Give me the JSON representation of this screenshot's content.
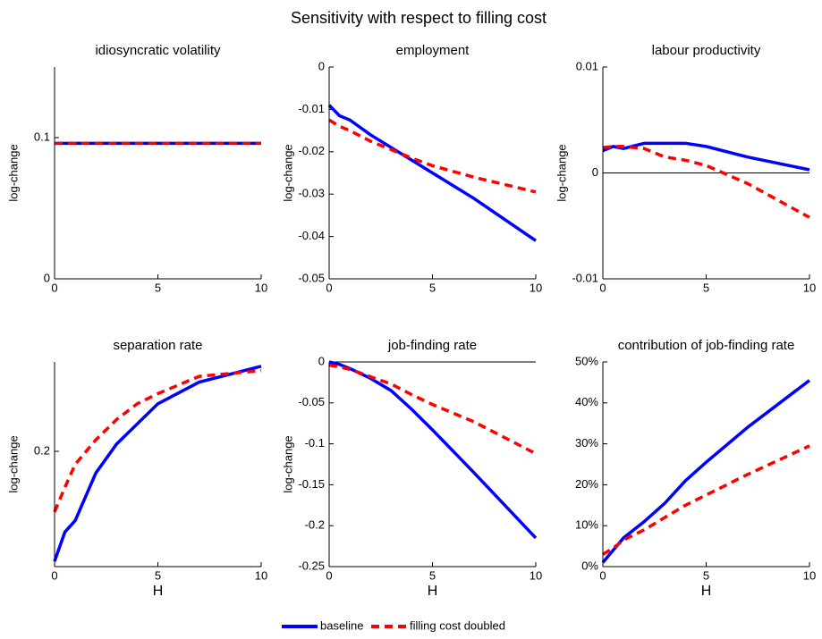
{
  "title": "Sensitivity with respect to filling cost",
  "legend": [
    {
      "name": "baseline",
      "color": "#0000ff"
    },
    {
      "name": "filling cost doubled",
      "color": "#ff0000",
      "dashed": true
    }
  ],
  "chart_data": [
    {
      "type": "line",
      "title": "idiosyncratic volatility",
      "ylabel": "log-change",
      "x": [
        0,
        0.5,
        1,
        2,
        3,
        4,
        5,
        7,
        10
      ],
      "xlim": [
        0,
        10
      ],
      "xticks": [
        0,
        5,
        10
      ],
      "ylim": [
        0,
        0.15
      ],
      "yticks": [
        0,
        0.1
      ],
      "series": [
        {
          "values": [
            0.096,
            0.096,
            0.096,
            0.096,
            0.096,
            0.096,
            0.096,
            0.096,
            0.096
          ]
        },
        {
          "values": [
            0.096,
            0.096,
            0.096,
            0.096,
            0.096,
            0.096,
            0.096,
            0.096,
            0.096
          ]
        }
      ]
    },
    {
      "type": "line",
      "title": "employment",
      "ylabel": "log-change",
      "x": [
        0,
        0.5,
        1,
        2,
        3,
        4,
        5,
        7,
        10
      ],
      "xlim": [
        0,
        10
      ],
      "xticks": [
        0,
        5,
        10
      ],
      "ylim": [
        -0.05,
        0
      ],
      "yticks": [
        -0.05,
        -0.04,
        -0.03,
        -0.02,
        -0.01,
        0
      ],
      "series": [
        {
          "values": [
            -0.009,
            -0.0115,
            -0.0125,
            -0.016,
            -0.019,
            -0.022,
            -0.025,
            -0.031,
            -0.041
          ]
        },
        {
          "values": [
            -0.0125,
            -0.014,
            -0.015,
            -0.0175,
            -0.0195,
            -0.0215,
            -0.0233,
            -0.026,
            -0.0295
          ]
        }
      ]
    },
    {
      "type": "line",
      "title": "labour productivity",
      "ylabel": "log-change",
      "zero_line": true,
      "x": [
        0,
        0.5,
        1,
        2,
        3,
        4,
        5,
        7,
        10
      ],
      "xlim": [
        0,
        10
      ],
      "xticks": [
        0,
        5,
        10
      ],
      "ylim": [
        -0.01,
        0.01
      ],
      "yticks": [
        -0.01,
        0,
        0.01
      ],
      "series": [
        {
          "values": [
            0.0021,
            0.0025,
            0.0023,
            0.0028,
            0.0028,
            0.0028,
            0.0025,
            0.0015,
            0.0003
          ]
        },
        {
          "values": [
            0.0024,
            0.0025,
            0.0025,
            0.0023,
            0.0015,
            0.0012,
            0.0007,
            -0.001,
            -0.0042
          ]
        }
      ]
    },
    {
      "type": "line",
      "title": "separation rate",
      "ylabel": "log-change",
      "xlabel": "H",
      "x": [
        0,
        0.5,
        1,
        2,
        3,
        4,
        5,
        7,
        10
      ],
      "xlim": [
        0,
        10
      ],
      "xticks": [
        0,
        5,
        10
      ],
      "ylim": [
        0.12,
        0.262
      ],
      "yticks": [
        0.2
      ],
      "series": [
        {
          "values": [
            0.1237,
            0.144,
            0.152,
            0.185,
            0.205,
            0.219,
            0.233,
            0.248,
            0.259
          ]
        },
        {
          "values": [
            0.158,
            0.175,
            0.191,
            0.208,
            0.222,
            0.233,
            0.24,
            0.252,
            0.256
          ]
        }
      ]
    },
    {
      "type": "line",
      "title": "job-finding rate",
      "ylabel": "log-change",
      "xlabel": "H",
      "zero_line": true,
      "x": [
        0,
        0.5,
        1,
        2,
        3,
        4,
        5,
        7,
        10
      ],
      "xlim": [
        0,
        10
      ],
      "xticks": [
        0,
        5,
        10
      ],
      "ylim": [
        -0.25,
        0
      ],
      "yticks": [
        -0.25,
        -0.2,
        -0.15,
        -0.1,
        -0.05,
        0
      ],
      "series": [
        {
          "values": [
            0,
            -0.003,
            -0.008,
            -0.02,
            -0.035,
            -0.058,
            -0.083,
            -0.135,
            -0.215
          ]
        },
        {
          "values": [
            -0.004,
            -0.006,
            -0.009,
            -0.018,
            -0.027,
            -0.04,
            -0.052,
            -0.073,
            -0.112
          ]
        }
      ]
    },
    {
      "type": "line",
      "title": "contribution of job-finding rate",
      "xlabel": "H",
      "x": [
        0,
        0.5,
        1,
        2,
        3,
        4,
        5,
        7,
        10
      ],
      "xlim": [
        0,
        10
      ],
      "xticks": [
        0,
        5,
        10
      ],
      "ylim": [
        0,
        50
      ],
      "yticks": [
        {
          "value": 0,
          "label": "0%"
        },
        {
          "value": 10,
          "label": "10%"
        },
        {
          "value": 20,
          "label": "20%"
        },
        {
          "value": 30,
          "label": "30%"
        },
        {
          "value": 40,
          "label": "40%"
        },
        {
          "value": 50,
          "label": "50%"
        }
      ],
      "series": [
        {
          "values": [
            1,
            4,
            7,
            11,
            15.5,
            21,
            25.5,
            34,
            45.5
          ]
        },
        {
          "values": [
            3,
            4.5,
            6.5,
            9,
            12,
            15,
            17.5,
            22.5,
            29.5
          ]
        }
      ]
    }
  ]
}
